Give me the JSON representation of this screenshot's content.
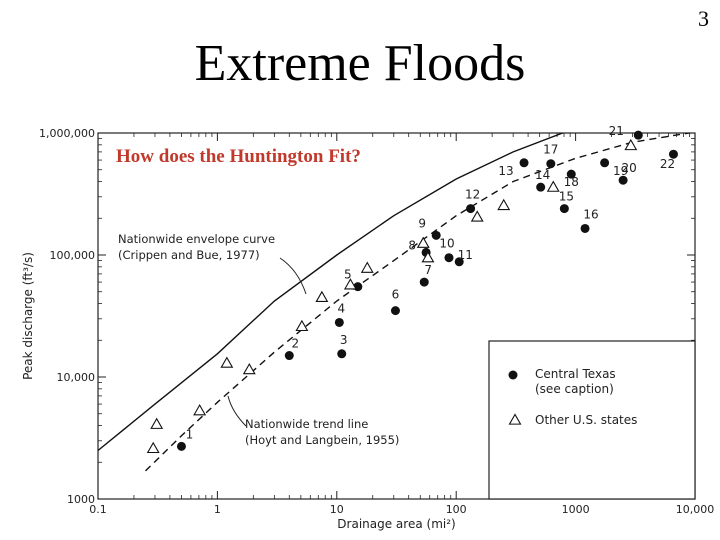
{
  "slide": {
    "number": "3",
    "title": "Extreme Floods",
    "question": "How does the Huntington Fit?"
  },
  "chart_data": {
    "type": "scatter",
    "xscale": "log",
    "yscale": "log",
    "xlim": [
      0.1,
      10000
    ],
    "ylim": [
      1000,
      1000000
    ],
    "xlabel": "Drainage area (mi²)",
    "ylabel": "Peak discharge (ft³/s)",
    "xticks": [
      {
        "value": 0.1,
        "label": "0.1"
      },
      {
        "value": 1,
        "label": "1"
      },
      {
        "value": 10,
        "label": "10"
      },
      {
        "value": 100,
        "label": "100"
      },
      {
        "value": 1000,
        "label": "1000"
      },
      {
        "value": 10000,
        "label": "10,000"
      }
    ],
    "yticks": [
      {
        "value": 1000,
        "label": "1000"
      },
      {
        "value": 10000,
        "label": "10,000"
      },
      {
        "value": 100000,
        "label": "100,000"
      },
      {
        "value": 1000000,
        "label": "1,000,000"
      }
    ],
    "series": [
      {
        "name": "Central Texas (see caption)",
        "marker": "filled-circle",
        "points": [
          {
            "label": "1",
            "x": 0.5,
            "y": 2700
          },
          {
            "label": "2",
            "x": 4.0,
            "y": 15000
          },
          {
            "label": "3",
            "x": 11,
            "y": 15500
          },
          {
            "label": "4",
            "x": 10.5,
            "y": 28000
          },
          {
            "label": "5",
            "x": 15,
            "y": 55000
          },
          {
            "label": "6",
            "x": 31,
            "y": 35000
          },
          {
            "label": "7",
            "x": 54,
            "y": 60000
          },
          {
            "label": "8",
            "x": 56,
            "y": 105000
          },
          {
            "label": "9",
            "x": 68,
            "y": 145000
          },
          {
            "label": "10",
            "x": 87,
            "y": 95000
          },
          {
            "label": "11",
            "x": 106,
            "y": 88000
          },
          {
            "label": "12",
            "x": 132,
            "y": 240000
          },
          {
            "label": "13",
            "x": 370,
            "y": 570000
          },
          {
            "label": "14",
            "x": 510,
            "y": 360000
          },
          {
            "label": "15",
            "x": 805,
            "y": 240000
          },
          {
            "label": "16",
            "x": 1200,
            "y": 165000
          },
          {
            "label": "17",
            "x": 620,
            "y": 560000
          },
          {
            "label": "18",
            "x": 920,
            "y": 460000
          },
          {
            "label": "19",
            "x": 1750,
            "y": 570000
          },
          {
            "label": "20",
            "x": 2500,
            "y": 410000
          },
          {
            "label": "21",
            "x": 3350,
            "y": 960000
          },
          {
            "label": "22",
            "x": 6600,
            "y": 670000
          }
        ]
      },
      {
        "name": "Other U.S. states",
        "marker": "open-triangle",
        "points": [
          {
            "x": 0.29,
            "y": 2600
          },
          {
            "x": 0.31,
            "y": 4100
          },
          {
            "x": 0.71,
            "y": 5300
          },
          {
            "x": 1.2,
            "y": 13000
          },
          {
            "x": 1.85,
            "y": 11500
          },
          {
            "x": 5.1,
            "y": 26000
          },
          {
            "x": 7.5,
            "y": 45000
          },
          {
            "x": 13,
            "y": 57000
          },
          {
            "x": 18,
            "y": 78000
          },
          {
            "x": 53,
            "y": 125000
          },
          {
            "x": 58,
            "y": 95000
          },
          {
            "x": 150,
            "y": 205000
          },
          {
            "x": 250,
            "y": 255000
          },
          {
            "x": 650,
            "y": 360000
          },
          {
            "x": 2900,
            "y": 790000
          }
        ]
      }
    ],
    "curves": [
      {
        "name": "Nationwide envelope curve (Crippen and Bue, 1977)",
        "style": "solid",
        "points": [
          [
            0.1,
            2500
          ],
          [
            0.3,
            6000
          ],
          [
            1,
            15500
          ],
          [
            3,
            42000
          ],
          [
            10,
            100000
          ],
          [
            30,
            210000
          ],
          [
            100,
            420000
          ],
          [
            300,
            700000
          ],
          [
            1000,
            1100000
          ]
        ]
      },
      {
        "name": "Nationwide trend line (Hoyt and Langbein, 1955)",
        "style": "dashed",
        "points": [
          [
            0.25,
            1700
          ],
          [
            0.5,
            3300
          ],
          [
            1,
            6200
          ],
          [
            3,
            16000
          ],
          [
            10,
            42000
          ],
          [
            30,
            90000
          ],
          [
            100,
            210000
          ],
          [
            300,
            400000
          ],
          [
            1000,
            620000
          ],
          [
            3000,
            840000
          ],
          [
            10000,
            1020000
          ]
        ]
      }
    ],
    "annotations": [
      {
        "text": "Nationwide envelope curve",
        "text2": "(Crippen and Bue, 1977)"
      },
      {
        "text": "Nationwide trend line",
        "text2": "(Hoyt and Langbein, 1955)"
      }
    ],
    "legend": {
      "placement": "bottom-right",
      "entries": [
        {
          "marker": "filled-circle",
          "line1": "Central Texas",
          "line2": "(see caption)"
        },
        {
          "marker": "open-triangle",
          "line1": "Other U.S. states",
          "line2": ""
        }
      ]
    }
  }
}
